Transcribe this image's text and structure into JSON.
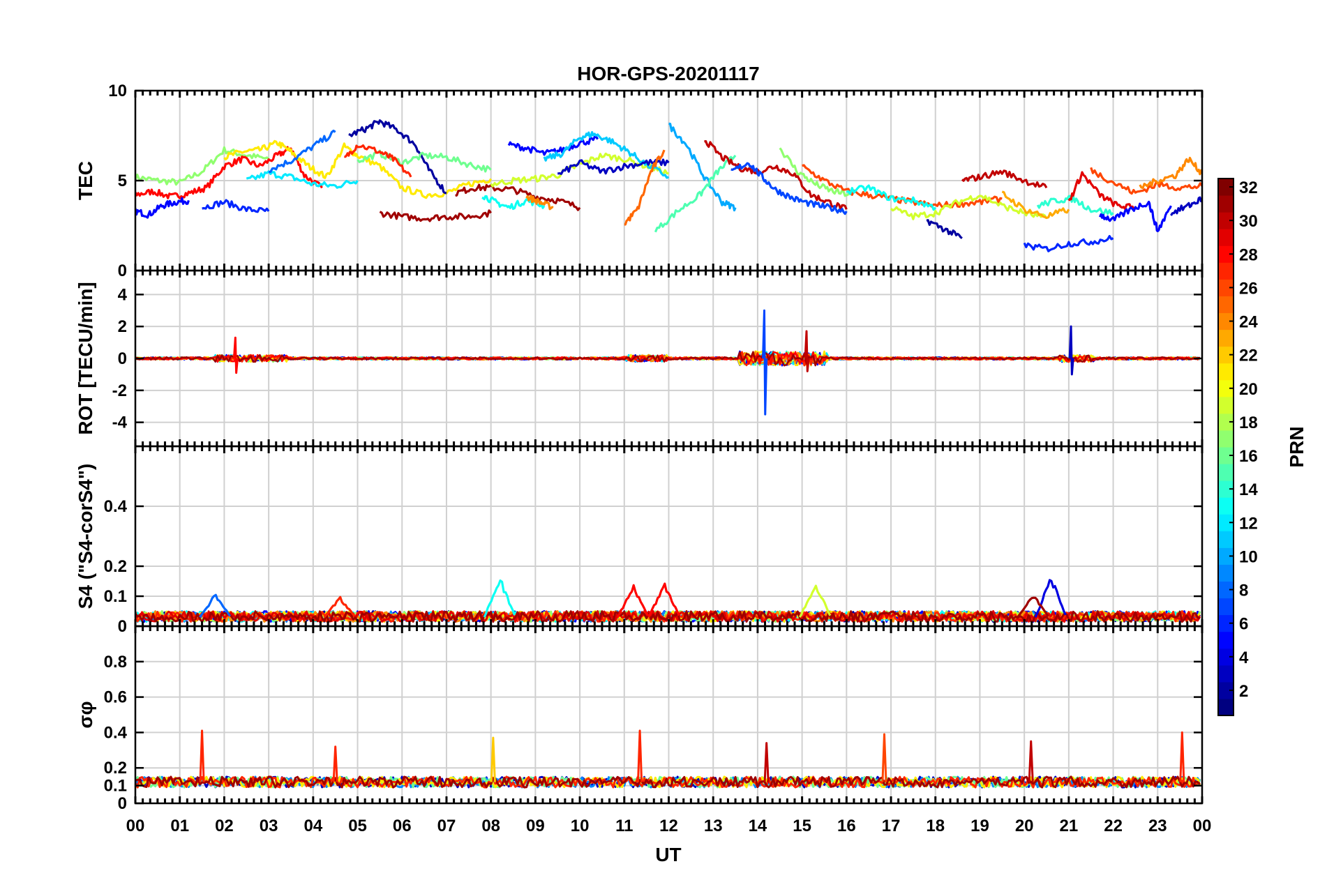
{
  "chart_data": {
    "type": "line",
    "title": "HOR-GPS-20201117",
    "xlabel": "UT",
    "x_ticks": [
      "00",
      "01",
      "02",
      "03",
      "04",
      "05",
      "06",
      "07",
      "08",
      "09",
      "10",
      "11",
      "12",
      "13",
      "14",
      "15",
      "16",
      "17",
      "18",
      "19",
      "20",
      "21",
      "22",
      "23",
      "00"
    ],
    "xlim": [
      0,
      24
    ],
    "grid": true,
    "colormap": "jet",
    "colorbar": {
      "label": "PRN",
      "range": [
        1,
        32
      ],
      "ticks": [
        "2",
        "4",
        "6",
        "8",
        "10",
        "12",
        "14",
        "16",
        "18",
        "20",
        "22",
        "24",
        "26",
        "28",
        "30",
        "32"
      ]
    },
    "panels": [
      {
        "name": "tec",
        "ylabel": "TEC",
        "ylim": [
          0,
          10
        ],
        "yticks": [
          0,
          5,
          10
        ],
        "ytick_labels": [
          "0",
          "5",
          "10"
        ],
        "series": [
          {
            "prn": 17,
            "x": [
              0.0,
              0.5,
              1.0,
              1.5,
              2.0,
              2.5,
              3.0
            ],
            "y": [
              5.2,
              5.0,
              4.9,
              5.5,
              6.7,
              6.4,
              6.2
            ]
          },
          {
            "prn": 28,
            "x": [
              0.0,
              0.4,
              0.8,
              1.2,
              1.6,
              2.0,
              2.4,
              2.8,
              3.2,
              3.5,
              3.8,
              4.2
            ],
            "y": [
              4.2,
              4.4,
              4.1,
              4.3,
              4.6,
              5.8,
              6.2,
              5.8,
              6.4,
              6.8,
              5.3,
              4.6
            ]
          },
          {
            "prn": 5,
            "x": [
              0.0,
              0.3,
              0.6,
              0.9,
              1.2
            ],
            "y": [
              3.3,
              3.1,
              3.6,
              3.8,
              3.9
            ]
          },
          {
            "prn": 21,
            "x": [
              2.0,
              2.4,
              2.8,
              3.2,
              3.5,
              3.9,
              4.3,
              4.7,
              5.0,
              5.5,
              6.0,
              6.5,
              7.0,
              7.5,
              8.0
            ],
            "y": [
              6.3,
              6.6,
              6.7,
              7.1,
              6.6,
              5.8,
              5.2,
              6.9,
              6.4,
              5.8,
              4.6,
              4.2,
              4.3,
              4.8,
              5.1
            ]
          },
          {
            "prn": 6,
            "x": [
              1.5,
              2.0,
              2.5,
              3.0
            ],
            "y": [
              3.5,
              3.8,
              3.4,
              3.3
            ]
          },
          {
            "prn": 12,
            "x": [
              2.5,
              3.0,
              3.5,
              4.0,
              4.5,
              5.0
            ],
            "y": [
              5.0,
              5.4,
              5.2,
              4.8,
              4.7,
              5.0
            ]
          },
          {
            "prn": 8,
            "x": [
              3.0,
              3.5,
              4.0,
              4.5
            ],
            "y": [
              5.6,
              6.1,
              6.9,
              7.7
            ]
          },
          {
            "prn": 2,
            "x": [
              4.8,
              5.2,
              5.5,
              5.9,
              6.3,
              6.6,
              7.0
            ],
            "y": [
              7.5,
              7.9,
              8.3,
              7.8,
              7.0,
              5.6,
              4.3
            ]
          },
          {
            "prn": 16,
            "x": [
              5.0,
              5.5,
              6.0,
              6.5,
              7.0,
              7.5,
              8.0
            ],
            "y": [
              6.1,
              6.5,
              6.0,
              6.4,
              6.3,
              5.9,
              5.6
            ]
          },
          {
            "prn": 27,
            "x": [
              4.7,
              5.0,
              5.5,
              5.8,
              6.2
            ],
            "y": [
              6.2,
              7.0,
              6.6,
              6.2,
              5.2
            ]
          },
          {
            "prn": 31,
            "x": [
              5.5,
              6.0,
              6.5,
              7.0,
              7.5,
              8.0
            ],
            "y": [
              3.2,
              3.0,
              2.9,
              3.0,
              3.0,
              3.2
            ]
          },
          {
            "prn": 31,
            "x": [
              7.2,
              7.6,
              8.0,
              8.5,
              9.0,
              9.5,
              10.0
            ],
            "y": [
              4.3,
              4.6,
              4.6,
              4.5,
              4.1,
              3.9,
              3.5
            ]
          },
          {
            "prn": 13,
            "x": [
              7.8,
              8.1,
              8.4,
              8.8,
              9.2
            ],
            "y": [
              4.2,
              3.8,
              3.5,
              3.9,
              3.6
            ]
          },
          {
            "prn": 24,
            "x": [
              8.8,
              9.1,
              9.4
            ],
            "y": [
              4.1,
              3.8,
              3.5
            ]
          },
          {
            "prn": 19,
            "x": [
              8.0,
              8.5,
              9.0,
              9.5,
              10.0,
              10.5,
              11.0,
              11.5,
              12.0
            ],
            "y": [
              4.8,
              5.0,
              5.1,
              5.3,
              5.9,
              6.4,
              6.2,
              5.8,
              5.4
            ]
          },
          {
            "prn": 5,
            "x": [
              8.4,
              8.8,
              9.2,
              9.6,
              10.0,
              10.4
            ],
            "y": [
              7.0,
              6.8,
              6.5,
              6.7,
              7.1,
              7.3
            ]
          },
          {
            "prn": 11,
            "x": [
              9.2,
              9.6,
              10.0,
              10.3,
              10.7,
              11.1,
              11.5,
              12.0
            ],
            "y": [
              6.2,
              6.5,
              7.4,
              7.6,
              7.2,
              6.6,
              5.9,
              5.2
            ]
          },
          {
            "prn": 3,
            "x": [
              9.5,
              10.0,
              10.5,
              11.0,
              11.5,
              12.0
            ],
            "y": [
              5.3,
              6.0,
              5.5,
              5.8,
              6.0,
              6.0
            ]
          },
          {
            "prn": 25,
            "x": [
              11.0,
              11.3,
              11.6,
              11.9
            ],
            "y": [
              2.6,
              3.4,
              5.5,
              6.7
            ]
          },
          {
            "prn": 10,
            "x": [
              12.0,
              12.4,
              12.8,
              13.2,
              13.5
            ],
            "y": [
              8.1,
              7.0,
              5.2,
              3.8,
              3.5
            ]
          },
          {
            "prn": 15,
            "x": [
              11.7,
              12.2,
              12.7,
              13.1,
              13.5
            ],
            "y": [
              2.2,
              3.3,
              4.2,
              5.5,
              6.4
            ]
          },
          {
            "prn": 30,
            "x": [
              12.8,
              13.2,
              13.6,
              14.0,
              14.4,
              14.8,
              15.2,
              15.6,
              16.0
            ],
            "y": [
              7.3,
              6.3,
              5.7,
              5.5,
              5.8,
              5.4,
              4.2,
              3.8,
              3.4
            ]
          },
          {
            "prn": 7,
            "x": [
              13.4,
              13.8,
              14.1,
              14.4,
              14.8,
              15.2,
              15.6,
              16.0
            ],
            "y": [
              5.5,
              6.0,
              5.2,
              4.5,
              4.0,
              3.7,
              3.5,
              3.3
            ]
          },
          {
            "prn": 17,
            "x": [
              14.5,
              14.9,
              15.3,
              15.7,
              16.1
            ],
            "y": [
              6.8,
              5.5,
              4.8,
              4.4,
              4.2
            ]
          },
          {
            "prn": 26,
            "x": [
              15.0,
              15.5,
              16.0,
              16.5,
              17.0,
              17.5,
              18.0,
              18.5,
              19.0,
              19.5
            ],
            "y": [
              5.8,
              5.0,
              4.4,
              4.2,
              4.0,
              3.8,
              3.6,
              3.7,
              3.8,
              4.0
            ]
          },
          {
            "prn": 13,
            "x": [
              16.0,
              16.5,
              17.0,
              17.5,
              18.0
            ],
            "y": [
              4.4,
              4.6,
              4.0,
              3.9,
              3.5
            ]
          },
          {
            "prn": 19,
            "x": [
              17.0,
              17.5,
              18.0,
              18.5,
              19.0,
              19.5,
              20.0,
              20.5
            ],
            "y": [
              3.5,
              3.0,
              3.2,
              3.8,
              4.2,
              3.6,
              3.2,
              2.9
            ]
          },
          {
            "prn": 2,
            "x": [
              17.8,
              18.2,
              18.6
            ],
            "y": [
              2.8,
              2.3,
              1.8
            ]
          },
          {
            "prn": 30,
            "x": [
              18.6,
              19.0,
              19.5,
              20.0,
              20.5
            ],
            "y": [
              5.0,
              5.2,
              5.5,
              5.0,
              4.6
            ]
          },
          {
            "prn": 23,
            "x": [
              19.5,
              20.0,
              20.5,
              21.0
            ],
            "y": [
              4.3,
              3.4,
              3.0,
              3.4
            ]
          },
          {
            "prn": 6,
            "x": [
              20.0,
              20.5,
              21.0,
              21.5,
              22.0
            ],
            "y": [
              1.4,
              1.2,
              1.5,
              1.6,
              1.8
            ]
          },
          {
            "prn": 14,
            "x": [
              20.3,
              20.7,
              21.1,
              21.5,
              22.0
            ],
            "y": [
              3.6,
              3.9,
              4.0,
              3.4,
              3.2
            ]
          },
          {
            "prn": 29,
            "x": [
              21.0,
              21.3,
              21.7,
              22.1,
              22.5
            ],
            "y": [
              3.8,
              5.4,
              4.2,
              3.6,
              3.5
            ]
          },
          {
            "prn": 5,
            "x": [
              21.7,
              22.0,
              22.4,
              22.8,
              23.0,
              23.3
            ],
            "y": [
              3.1,
              2.8,
              3.4,
              3.8,
              2.2,
              3.6
            ]
          },
          {
            "prn": 26,
            "x": [
              21.5,
              22.0,
              22.5,
              23.0,
              23.5,
              24.0
            ],
            "y": [
              5.6,
              4.9,
              4.3,
              4.8,
              4.6,
              4.7
            ]
          },
          {
            "prn": 24,
            "x": [
              22.6,
              23.0,
              23.4,
              23.7,
              24.0
            ],
            "y": [
              4.6,
              5.0,
              5.3,
              6.2,
              5.4
            ]
          },
          {
            "prn": 3,
            "x": [
              23.3,
              23.7,
              24.0
            ],
            "y": [
              3.2,
              3.6,
              4.0
            ]
          }
        ]
      },
      {
        "name": "rot",
        "ylabel": "ROT [TECU/min]",
        "ylim": [
          -5.5,
          5.5
        ],
        "yticks": [
          -4,
          -2,
          0,
          2,
          4
        ],
        "ytick_labels": [
          "-4",
          "-2",
          "0",
          "2",
          "4"
        ],
        "spikes": [
          {
            "prn": 7,
            "x": 14.15,
            "y": [
              -3.5,
              3.0
            ]
          },
          {
            "prn": 3,
            "x": 21.05,
            "y": [
              -1.0,
              2.0
            ]
          },
          {
            "prn": 28,
            "x": 2.25,
            "y": [
              -0.9,
              1.3
            ]
          },
          {
            "prn": 30,
            "x": 15.1,
            "y": [
              -0.8,
              1.7
            ]
          }
        ]
      },
      {
        "name": "s4",
        "ylabel": "S4 (\"S4-corS4\")",
        "ylim": [
          0,
          0.6
        ],
        "yticks": [
          0,
          0.1,
          0.2,
          0.4
        ],
        "ytick_labels": [
          "0",
          "0.1",
          "0.2",
          "0.4"
        ],
        "peaks": [
          {
            "prn": 13,
            "x": 8.2,
            "y": 0.17
          },
          {
            "prn": 28,
            "x": 11.9,
            "y": 0.15
          },
          {
            "prn": 28,
            "x": 11.2,
            "y": 0.14
          },
          {
            "prn": 4,
            "x": 20.6,
            "y": 0.17
          },
          {
            "prn": 19,
            "x": 15.3,
            "y": 0.15
          },
          {
            "prn": 8,
            "x": 1.8,
            "y": 0.11
          },
          {
            "prn": 27,
            "x": 4.6,
            "y": 0.1
          },
          {
            "prn": 31,
            "x": 20.2,
            "y": 0.11
          }
        ]
      },
      {
        "name": "sigma_phi",
        "ylabel": "σφ",
        "ylim": [
          0,
          1
        ],
        "yticks": [
          0,
          0.1,
          0.2,
          0.4,
          0.6,
          0.8
        ],
        "ytick_labels": [
          "0",
          "0.1",
          "0.2",
          "0.4",
          "0.6",
          "0.8"
        ],
        "spikes": [
          {
            "prn": 27,
            "x": 1.5,
            "y": 0.41
          },
          {
            "prn": 27,
            "x": 4.5,
            "y": 0.32
          },
          {
            "prn": 22,
            "x": 8.05,
            "y": 0.37
          },
          {
            "prn": 27,
            "x": 11.35,
            "y": 0.41
          },
          {
            "prn": 26,
            "x": 16.85,
            "y": 0.39
          },
          {
            "prn": 27,
            "x": 23.55,
            "y": 0.4
          },
          {
            "prn": 30,
            "x": 20.15,
            "y": 0.35
          },
          {
            "prn": 30,
            "x": 14.2,
            "y": 0.34
          }
        ]
      }
    ]
  }
}
